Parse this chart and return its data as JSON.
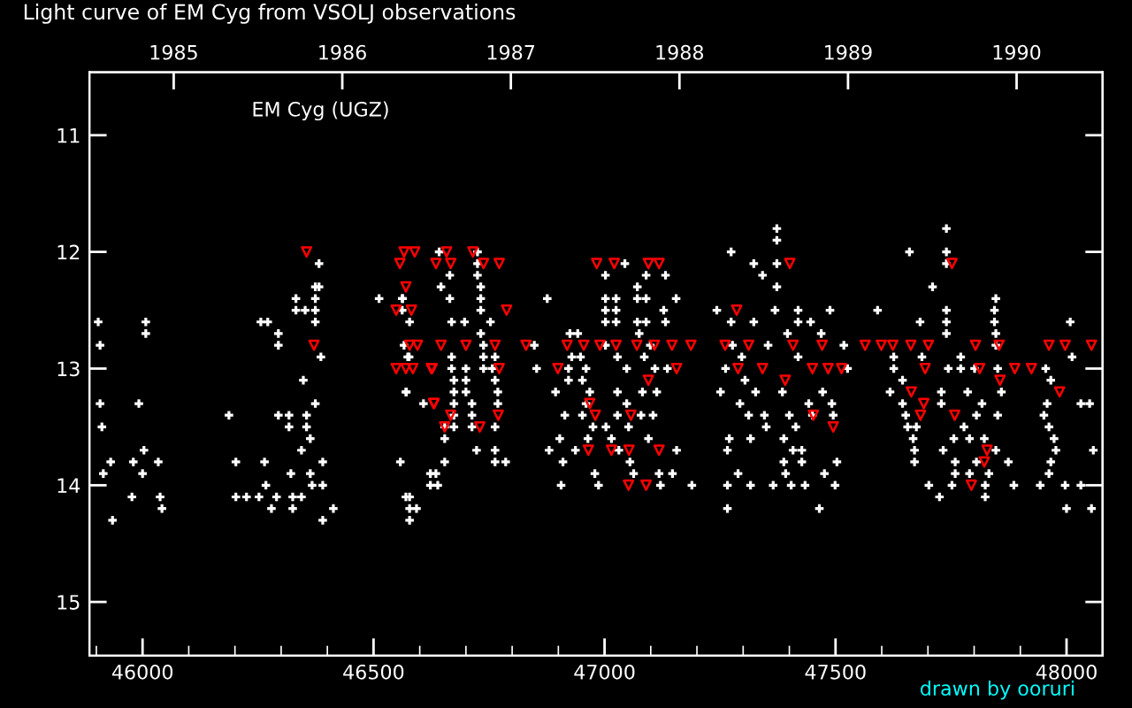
{
  "chart_data": {
    "type": "scatter",
    "title": "Light curve of EM Cyg from VSOLJ observations",
    "annotations": [
      "EM Cyg (UGZ)",
      "drawn by ooruri"
    ],
    "xlim": [
      45885,
      48078
    ],
    "ylim": [
      15.46,
      10.46
    ],
    "xticks": [
      {
        "value": 45900,
        "label": null
      },
      46000,
      {
        "value": 46100,
        "label": null
      },
      {
        "value": 46200,
        "label": null
      },
      {
        "value": 46300,
        "label": null
      },
      {
        "value": 46400,
        "label": null
      },
      46500,
      {
        "value": 46600,
        "label": null
      },
      {
        "value": 46700,
        "label": null
      },
      {
        "value": 46800,
        "label": null
      },
      {
        "value": 46900,
        "label": null
      },
      47000,
      {
        "value": 47100,
        "label": null
      },
      {
        "value": 47200,
        "label": null
      },
      {
        "value": 47300,
        "label": null
      },
      {
        "value": 47400,
        "label": null
      },
      47500,
      {
        "value": 47600,
        "label": null
      },
      {
        "value": 47700,
        "label": null
      },
      {
        "value": 47800,
        "label": null
      },
      {
        "value": 47900,
        "label": null
      },
      48000
    ],
    "yticks": [
      11,
      12,
      13,
      14,
      15
    ],
    "x2lim": [
      1984.5,
      1990.51
    ],
    "x2ticks": [
      1985,
      1986,
      1987,
      1988,
      1989,
      1990
    ],
    "grid": false,
    "series": [
      {
        "color": "#ffffff",
        "marker": "cross",
        "x": [
          45904,
          45908,
          45908,
          45912,
          45931,
          45915,
          45935,
          45977,
          45980,
          45992,
          46000,
          46003,
          46007,
          46007,
          46034,
          46038,
          46042,
          46187,
          46202,
          46202,
          46225,
          46252,
          46256,
          46264,
          46267,
          46271,
          46279,
          46290,
          46294,
          46294,
          46294,
          46317,
          46317,
          46321,
          46325,
          46325,
          46332,
          46332,
          46344,
          46344,
          46348,
          46352,
          46355,
          46355,
          46363,
          46363,
          46367,
          46374,
          46374,
          46374,
          46374,
          46374,
          46382,
          46382,
          46386,
          46390,
          46390,
          46390,
          46413,
          46512,
          46558,
          46562,
          46562,
          46566,
          46570,
          46570,
          46578,
          46574,
          46578,
          46578,
          46578,
          46608,
          46623,
          46623,
          46642,
          46563,
          46593,
          46571,
          46577,
          46635,
          46639,
          46646,
          46654,
          46654,
          46654,
          46665,
          46665,
          46669,
          46669,
          46669,
          46674,
          46674,
          46674,
          46674,
          46674,
          46697,
          46700,
          46700,
          46700,
          46713,
          46713,
          46713,
          46723,
          46725,
          46725,
          46725,
          46732,
          46732,
          46732,
          46732,
          46738,
          46738,
          46738,
          46753,
          46757,
          46763,
          46763,
          46763,
          46763,
          46763,
          46769,
          46769,
          46786,
          46853,
          46848,
          46876,
          46880,
          46894,
          46903,
          46906,
          46910,
          46914,
          46922,
          46922,
          46925,
          46929,
          46937,
          46942,
          46948,
          46952,
          46952,
          46960,
          46960,
          46964,
          46968,
          46975,
          46979,
          46987,
          47002,
          47002,
          47002,
          47002,
          47002,
          47003,
          47015,
          47025,
          47025,
          47025,
          47028,
          47028,
          47028,
          47031,
          47044,
          47048,
          47048,
          47052,
          47055,
          47063,
          47071,
          47071,
          47071,
          47075,
          47079,
          47082,
          47086,
          47090,
          47090,
          47090,
          47095,
          47099,
          47105,
          47109,
          47113,
          47118,
          47121,
          47128,
          47132,
          47132,
          47136,
          47147,
          47155,
          47156,
          47189,
          47243,
          47251,
          47262,
          47266,
          47266,
          47266,
          47270,
          47274,
          47274,
          47277,
          47293,
          47289,
          47297,
          47304,
          47312,
          47316,
          47316,
          47323,
          47323,
          47327,
          47342,
          47346,
          47350,
          47354,
          47365,
          47369,
          47373,
          47373,
          47373,
          47373,
          47385,
          47388,
          47388,
          47392,
          47396,
          47400,
          47404,
          47408,
          47414,
          47419,
          47419,
          47419,
          47427,
          47427,
          47434,
          47442,
          47446,
          47450,
          47465,
          47469,
          47472,
          47476,
          47488,
          47492,
          47495,
          47499,
          47503,
          47518,
          47526,
          47591,
          47618,
          47626,
          47626,
          47645,
          47645,
          47652,
          47656,
          47660,
          47668,
          47671,
          47671,
          47675,
          47683,
          47687,
          47702,
          47710,
          47725,
          47729,
          47729,
          47733,
          47740,
          47740,
          47740,
          47740,
          47740,
          47740,
          47744,
          47752,
          47756,
          47759,
          47759,
          47771,
          47771,
          47778,
          47786,
          47790,
          47790,
          47801,
          47805,
          47805,
          47817,
          47822,
          47824,
          47824,
          47832,
          47844,
          47844,
          47847,
          47847,
          47847,
          47847,
          47851,
          47851,
          47859,
          47874,
          47886,
          47943,
          47951,
          47955,
          47958,
          47962,
          47962,
          47966,
          47966,
          47973,
          47977,
          47997,
          48000,
          48008,
          48012,
          48031,
          48031,
          48050,
          48054,
          48058
        ],
        "values": [
          12.6,
          12.8,
          13.3,
          13.5,
          13.8,
          13.9,
          14.3,
          14.1,
          13.8,
          13.3,
          13.9,
          13.7,
          12.6,
          12.7,
          13.8,
          14.1,
          14.2,
          13.4,
          13.8,
          14.1,
          14.1,
          14.1,
          12.6,
          13.8,
          14.0,
          12.6,
          14.2,
          14.1,
          12.7,
          12.8,
          13.4,
          13.4,
          13.5,
          13.9,
          14.1,
          14.2,
          12.4,
          12.5,
          13.7,
          14.1,
          13.1,
          12.5,
          13.4,
          13.5,
          13.6,
          13.9,
          14.0,
          12.3,
          12.4,
          12.6,
          12.5,
          13.3,
          12.1,
          12.3,
          12.9,
          13.8,
          14.0,
          14.3,
          14.2,
          12.4,
          13.8,
          12.4,
          12.5,
          12.8,
          13.2,
          14.1,
          14.1,
          12.9,
          12.6,
          14.2,
          14.3,
          13.3,
          13.9,
          14.0,
          12.0,
          12.4,
          14.2,
          13.2,
          12.9,
          13.9,
          14.0,
          12.3,
          13.5,
          13.6,
          13.8,
          12.2,
          12.4,
          12.6,
          12.9,
          13.0,
          13.1,
          13.2,
          13.3,
          13.4,
          13.5,
          12.6,
          13.0,
          13.1,
          13.2,
          13.3,
          13.4,
          13.5,
          13.7,
          12.0,
          12.1,
          12.2,
          12.3,
          12.4,
          12.5,
          12.7,
          12.8,
          12.9,
          13.0,
          12.6,
          13.0,
          13.1,
          13.5,
          13.7,
          13.8,
          12.9,
          13.2,
          13.3,
          13.8,
          13.0,
          12.8,
          12.4,
          13.7,
          13.2,
          13.6,
          14.0,
          13.8,
          13.4,
          13.0,
          13.1,
          12.7,
          12.9,
          13.7,
          12.7,
          12.9,
          13.1,
          13.4,
          13.0,
          13.3,
          13.6,
          13.2,
          13.5,
          13.9,
          14.0,
          12.2,
          12.4,
          12.5,
          12.6,
          12.8,
          13.5,
          13.6,
          12.4,
          12.5,
          12.6,
          12.9,
          13.2,
          13.4,
          13.7,
          12.1,
          13.0,
          13.3,
          13.5,
          13.8,
          13.9,
          12.3,
          12.4,
          12.6,
          12.7,
          13.4,
          13.2,
          12.9,
          12.2,
          12.4,
          12.6,
          13.6,
          12.8,
          13.4,
          13.0,
          13.2,
          13.9,
          14.0,
          12.5,
          12.2,
          12.6,
          13.0,
          13.9,
          12.4,
          13.7,
          14.0,
          12.5,
          13.2,
          13.0,
          13.7,
          14.0,
          14.2,
          13.6,
          12.0,
          12.6,
          12.8,
          13.3,
          13.9,
          12.9,
          13.1,
          13.4,
          13.6,
          14.0,
          12.1,
          12.6,
          13.2,
          12.2,
          13.4,
          13.5,
          12.8,
          14.0,
          12.5,
          11.8,
          11.9,
          12.1,
          12.3,
          13.2,
          13.6,
          13.8,
          13.9,
          12.7,
          13.4,
          14.0,
          13.7,
          13.5,
          12.5,
          12.6,
          12.9,
          13.8,
          13.7,
          14.0,
          13.3,
          12.6,
          13.4,
          14.2,
          12.7,
          13.2,
          13.9,
          12.5,
          13.3,
          13.4,
          14.0,
          13.8,
          12.8,
          13.0,
          12.5,
          13.2,
          12.9,
          13.0,
          13.1,
          13.3,
          13.4,
          13.5,
          12.0,
          13.6,
          13.7,
          13.8,
          13.5,
          12.6,
          12.9,
          14.0,
          12.3,
          14.1,
          13.2,
          13.3,
          13.7,
          11.8,
          12.1,
          12.0,
          12.5,
          12.6,
          12.7,
          13.0,
          14.0,
          13.6,
          13.8,
          13.9,
          12.9,
          13.0,
          13.5,
          13.2,
          13.6,
          13.9,
          13.0,
          13.4,
          13.8,
          13.3,
          13.6,
          14.0,
          14.1,
          13.9,
          12.5,
          12.6,
          12.4,
          12.7,
          12.8,
          13.7,
          13.0,
          13.4,
          13.2,
          13.8,
          14.0,
          14.0,
          13.4,
          13.0,
          13.3,
          13.5,
          13.9,
          13.1,
          13.8,
          13.6,
          13.7,
          14.0,
          14.2,
          12.6,
          12.9,
          13.3,
          14.0,
          13.3,
          14.2,
          13.7
        ]
      },
      {
        "color": "#ff0000",
        "marker": "triangle",
        "x": [
          46355,
          46371,
          46557,
          46566,
          46570,
          46570,
          46578,
          46630,
          46625,
          46589,
          46658,
          46715,
          46635,
          46667,
          46738,
          46772,
          46549,
          46582,
          46788,
          46595,
          46646,
          46700,
          46763,
          46830,
          46549,
          46585,
          46627,
          46772,
          46631,
          46667,
          46654,
          46770,
          46730,
          46899,
          46919,
          46955,
          46990,
          47025,
          47070,
          47108,
          47146,
          47187,
          47261,
          46983,
          47021,
          47095,
          47118,
          47095,
          46968,
          46980,
          47057,
          47015,
          47053,
          47118,
          46965,
          47052,
          47090,
          47156,
          47286,
          47289,
          47401,
          47752,
          47312,
          47408,
          47471,
          47564,
          47599,
          47624,
          47663,
          47701,
          47803,
          47854,
          47962,
          47997,
          48054,
          47342,
          47391,
          47450,
          47484,
          47513,
          47694,
          47812,
          47856,
          47888,
          47924,
          47985,
          47664,
          47691,
          47684,
          47758,
          47452,
          47495,
          47828,
          47822,
          47794
        ],
        "values": [
          12.0,
          12.8,
          12.1,
          12.0,
          13.0,
          12.3,
          12.8,
          13.3,
          13.0,
          12.0,
          12.0,
          12.0,
          12.1,
          12.1,
          12.1,
          12.1,
          12.5,
          12.5,
          12.5,
          12.8,
          12.8,
          12.8,
          12.8,
          12.8,
          13.0,
          13.0,
          13.0,
          13.0,
          13.3,
          13.4,
          13.5,
          13.4,
          13.5,
          13.0,
          12.8,
          12.8,
          12.8,
          12.8,
          12.8,
          12.8,
          12.8,
          12.8,
          12.8,
          12.1,
          12.1,
          12.1,
          12.1,
          13.1,
          13.3,
          13.4,
          13.4,
          13.7,
          13.7,
          13.7,
          13.7,
          14.0,
          14.0,
          13.0,
          12.5,
          13.0,
          12.1,
          12.1,
          12.8,
          12.8,
          12.8,
          12.8,
          12.8,
          12.8,
          12.8,
          12.8,
          12.8,
          12.8,
          12.8,
          12.8,
          12.8,
          13.0,
          13.1,
          13.0,
          13.0,
          13.0,
          13.0,
          13.0,
          13.1,
          13.0,
          13.0,
          13.2,
          13.2,
          13.3,
          13.4,
          13.4,
          13.4,
          13.5,
          13.7,
          13.8,
          14.0
        ]
      }
    ]
  }
}
